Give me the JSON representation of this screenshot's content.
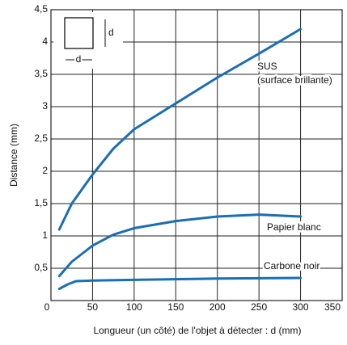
{
  "chart_data": {
    "type": "line",
    "xlabel": "Longueur (un côté) de l'objet à détecter : d (mm)",
    "ylabel": "Distance (mm)",
    "series": [
      {
        "name": "SUS",
        "subname": "(surface brillante)",
        "color": "#1a6eb5",
        "x": [
          10,
          25,
          50,
          75,
          100,
          150,
          200,
          250,
          300
        ],
        "values": [
          1.1,
          1.5,
          1.95,
          2.35,
          2.65,
          3.05,
          3.45,
          3.82,
          4.2
        ]
      },
      {
        "name": "Papier blanc",
        "color": "#1a6eb5",
        "x": [
          10,
          25,
          50,
          75,
          100,
          150,
          200,
          250,
          300
        ],
        "values": [
          0.38,
          0.6,
          0.85,
          1.02,
          1.12,
          1.23,
          1.3,
          1.33,
          1.3
        ]
      },
      {
        "name": "Carbone noir",
        "color": "#1a6eb5",
        "x": [
          10,
          20,
          30,
          50,
          100,
          200,
          300
        ],
        "values": [
          0.18,
          0.25,
          0.3,
          0.31,
          0.32,
          0.34,
          0.35
        ]
      }
    ],
    "inset_labels": [
      "d",
      "d"
    ],
    "xlim": [
      0,
      350
    ],
    "xticks": [
      0,
      50,
      100,
      150,
      200,
      250,
      300,
      350
    ],
    "ylim": [
      0,
      4.5
    ],
    "yticks": [
      {
        "value": 0.5,
        "label": "0,5"
      },
      1,
      {
        "value": 1.5,
        "label": "1,5"
      },
      2,
      {
        "value": 2.5,
        "label": "2,5"
      },
      3,
      {
        "value": 3.5,
        "label": "3,5"
      },
      4,
      {
        "value": 4.5,
        "label": "4,5"
      }
    ],
    "grid": true
  }
}
